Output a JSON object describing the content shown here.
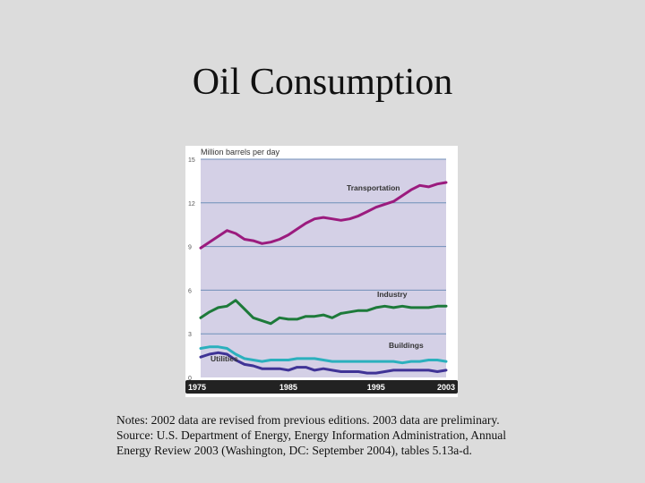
{
  "slide": {
    "title": "Oil Consumption",
    "notes": [
      "Notes: 2002 data are revised from previous editions. 2003 data are preliminary.",
      "Source: U.S. Department of Energy, Energy Information Administration, Annual",
      "Energy Review 2003 (Washington, DC: September 2004), tables 5.13a-d."
    ]
  },
  "chart_data": {
    "type": "line",
    "ylabel": "Million barrels per day",
    "xlim": [
      1975,
      2003
    ],
    "ylim": [
      0,
      15
    ],
    "yticks": [
      0,
      3,
      6,
      9,
      12,
      15
    ],
    "ytick_labels": [
      "0",
      "3",
      "6",
      "9",
      "12",
      "15"
    ],
    "xticks": [
      1975,
      1985,
      1995,
      2003
    ],
    "xtick_labels": [
      "1975",
      "1985",
      "1995",
      "2003"
    ],
    "grid": true,
    "colors": {
      "plot_bg": "#d4d0e6",
      "axis_band": "#222222",
      "Transportation": "#9b1b7e",
      "Industry": "#1d7a3a",
      "Buildings": "#2bb0bd",
      "Utilities": "#3f3396"
    },
    "x": [
      1975,
      1976,
      1977,
      1978,
      1979,
      1980,
      1981,
      1982,
      1983,
      1984,
      1985,
      1986,
      1987,
      1988,
      1989,
      1990,
      1991,
      1992,
      1993,
      1994,
      1995,
      1996,
      1997,
      1998,
      1999,
      2000,
      2001,
      2002,
      2003
    ],
    "series": [
      {
        "name": "Transportation",
        "values": [
          8.9,
          9.3,
          9.7,
          10.1,
          9.9,
          9.5,
          9.4,
          9.2,
          9.3,
          9.5,
          9.8,
          10.2,
          10.6,
          10.9,
          11.0,
          10.9,
          10.8,
          10.9,
          11.1,
          11.4,
          11.7,
          11.9,
          12.1,
          12.5,
          12.9,
          13.2,
          13.1,
          13.3,
          13.4
        ]
      },
      {
        "name": "Industry",
        "values": [
          4.1,
          4.5,
          4.8,
          4.9,
          5.3,
          4.7,
          4.1,
          3.9,
          3.7,
          4.1,
          4.0,
          4.0,
          4.2,
          4.2,
          4.3,
          4.1,
          4.4,
          4.5,
          4.6,
          4.6,
          4.8,
          4.9,
          4.8,
          4.9,
          4.8,
          4.8,
          4.8,
          4.9,
          4.9
        ]
      },
      {
        "name": "Buildings",
        "values": [
          2.0,
          2.1,
          2.1,
          2.0,
          1.6,
          1.3,
          1.2,
          1.1,
          1.2,
          1.2,
          1.2,
          1.3,
          1.3,
          1.3,
          1.2,
          1.1,
          1.1,
          1.1,
          1.1,
          1.1,
          1.1,
          1.1,
          1.1,
          1.0,
          1.1,
          1.1,
          1.2,
          1.2,
          1.1
        ]
      },
      {
        "name": "Utilities",
        "values": [
          1.4,
          1.6,
          1.7,
          1.6,
          1.2,
          0.9,
          0.8,
          0.6,
          0.6,
          0.6,
          0.5,
          0.7,
          0.7,
          0.5,
          0.6,
          0.5,
          0.4,
          0.4,
          0.4,
          0.3,
          0.3,
          0.4,
          0.5,
          0.5,
          0.5,
          0.5,
          0.5,
          0.4,
          0.5
        ]
      }
    ],
    "series_labels": [
      {
        "name": "Transportation",
        "text": "Transportation"
      },
      {
        "name": "Industry",
        "text": "Industry"
      },
      {
        "name": "Buildings",
        "text": "Buildings"
      },
      {
        "name": "Utilities",
        "text": "Utilities"
      }
    ]
  }
}
